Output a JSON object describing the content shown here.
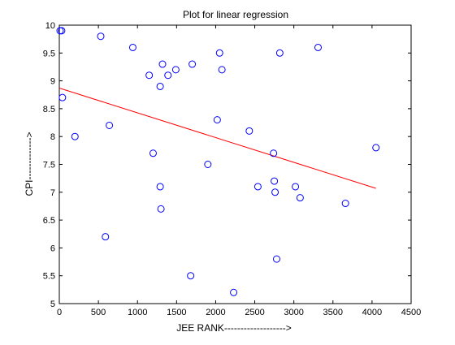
{
  "chart_data": {
    "type": "scatter",
    "title": "Plot for linear regression",
    "xlabel": "JEE RANK------------------->",
    "ylabel": "CPI------------->",
    "xlim": [
      0,
      4500
    ],
    "ylim": [
      5,
      10
    ],
    "xticks": [
      0,
      500,
      1000,
      1500,
      2000,
      2500,
      3000,
      3500,
      4000,
      4500
    ],
    "yticks": [
      5,
      5.5,
      6,
      6.5,
      7,
      7.5,
      8,
      8.5,
      9,
      9.5,
      10
    ],
    "xtick_labels": [
      "0",
      "500",
      "1000",
      "1500",
      "2000",
      "2500",
      "3000",
      "3500",
      "4000",
      "4500"
    ],
    "ytick_labels": [
      "5",
      "5.5",
      "6",
      "6.5",
      "7",
      "7.5",
      "8",
      "8.5",
      "9",
      "9.5",
      "10"
    ],
    "grid": false,
    "series": [
      {
        "marker": "circle",
        "color": "#0000ff",
        "points": [
          [
            10,
            9.9
          ],
          [
            30,
            9.9
          ],
          [
            40,
            8.7
          ],
          [
            200,
            8.0
          ],
          [
            530,
            9.8
          ],
          [
            590,
            6.2
          ],
          [
            640,
            8.2
          ],
          [
            940,
            9.6
          ],
          [
            1150,
            9.1
          ],
          [
            1200,
            7.7
          ],
          [
            1290,
            8.9
          ],
          [
            1290,
            7.1
          ],
          [
            1300,
            6.7
          ],
          [
            1320,
            9.3
          ],
          [
            1390,
            9.1
          ],
          [
            1490,
            9.2
          ],
          [
            1680,
            5.5
          ],
          [
            1700,
            9.3
          ],
          [
            1900,
            7.5
          ],
          [
            2020,
            8.3
          ],
          [
            2050,
            9.5
          ],
          [
            2080,
            9.2
          ],
          [
            2230,
            5.2
          ],
          [
            2430,
            8.1
          ],
          [
            2540,
            7.1
          ],
          [
            2740,
            7.7
          ],
          [
            2750,
            7.2
          ],
          [
            2760,
            7.0
          ],
          [
            2780,
            5.8
          ],
          [
            2820,
            9.5
          ],
          [
            3020,
            7.1
          ],
          [
            3080,
            6.9
          ],
          [
            3310,
            9.6
          ],
          [
            3660,
            6.8
          ],
          [
            4050,
            7.8
          ]
        ]
      },
      {
        "style": "line",
        "color": "#ff0000",
        "points": [
          [
            0,
            8.87
          ],
          [
            4050,
            7.07
          ]
        ]
      }
    ]
  }
}
